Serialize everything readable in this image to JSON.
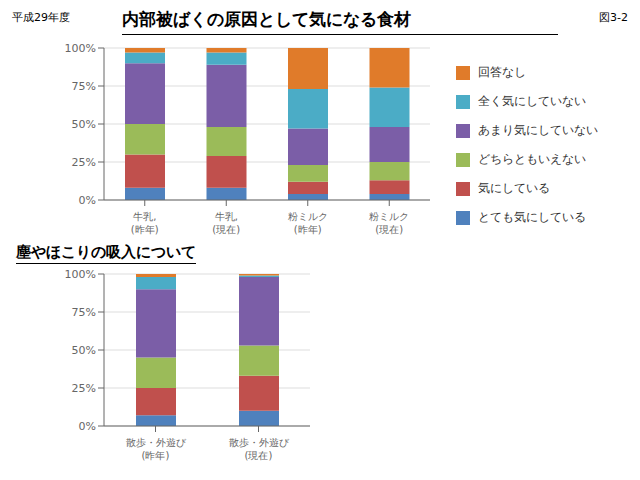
{
  "chart_data": [
    {
      "type": "bar",
      "stacked": true,
      "title": "内部被ばくの原因として気になる食材",
      "annotations": [
        "平成29年度",
        "図3-2"
      ],
      "categories": [
        "牛乳,\n(昨年)",
        "牛乳,\n(現在)",
        "粉ミルク\n(昨年)",
        "粉ミルク\n(現在)"
      ],
      "series": [
        {
          "name": "回答なし",
          "color": "#E07B2A",
          "values": [
            3,
            3,
            27,
            26
          ]
        },
        {
          "name": "全く気にしていない",
          "color": "#4BACC6",
          "values": [
            7,
            8,
            26,
            26
          ]
        },
        {
          "name": "あまり気にしていない",
          "color": "#7B5EA7",
          "values": [
            40,
            41,
            24,
            23
          ]
        },
        {
          "name": "どちらともいえない",
          "color": "#9BBB59",
          "values": [
            20,
            19,
            11,
            12
          ]
        },
        {
          "name": "気にしている",
          "color": "#C0504D",
          "values": [
            22,
            21,
            8,
            9
          ]
        },
        {
          "name": "とても気にしている",
          "color": "#4F81BD",
          "values": [
            8,
            8,
            4,
            4
          ]
        }
      ],
      "ylim": [
        0,
        100
      ],
      "yticks": [
        {
          "value": 0,
          "label": "0%"
        },
        {
          "value": 25,
          "label": "25%"
        },
        {
          "value": 50,
          "label": "50%"
        },
        {
          "value": 75,
          "label": "75%"
        },
        {
          "value": 100,
          "label": "100%"
        }
      ],
      "grid": true,
      "legend": "right"
    },
    {
      "type": "bar",
      "stacked": true,
      "title": "塵やほこりの吸入について",
      "categories": [
        "散歩・外遊び\n(昨年)",
        "散歩・外遊び\n(現在)"
      ],
      "series": [
        {
          "name": "回答なし",
          "color": "#E07B2A",
          "values": [
            2,
            1
          ]
        },
        {
          "name": "全く気にしていない",
          "color": "#4BACC6",
          "values": [
            8,
            1
          ]
        },
        {
          "name": "あまり気にしていない",
          "color": "#7B5EA7",
          "values": [
            45,
            45
          ]
        },
        {
          "name": "どちらともいえない",
          "color": "#9BBB59",
          "values": [
            20,
            20
          ]
        },
        {
          "name": "気にしている",
          "color": "#C0504D",
          "values": [
            18,
            23
          ]
        },
        {
          "name": "とても気にしている",
          "color": "#4F81BD",
          "values": [
            7,
            10
          ]
        }
      ],
      "ylim": [
        0,
        100
      ],
      "yticks": [
        {
          "value": 0,
          "label": "0%"
        },
        {
          "value": 25,
          "label": "25%"
        },
        {
          "value": 50,
          "label": "50%"
        },
        {
          "value": 75,
          "label": "75%"
        },
        {
          "value": 100,
          "label": "100%"
        }
      ],
      "grid": true
    }
  ]
}
